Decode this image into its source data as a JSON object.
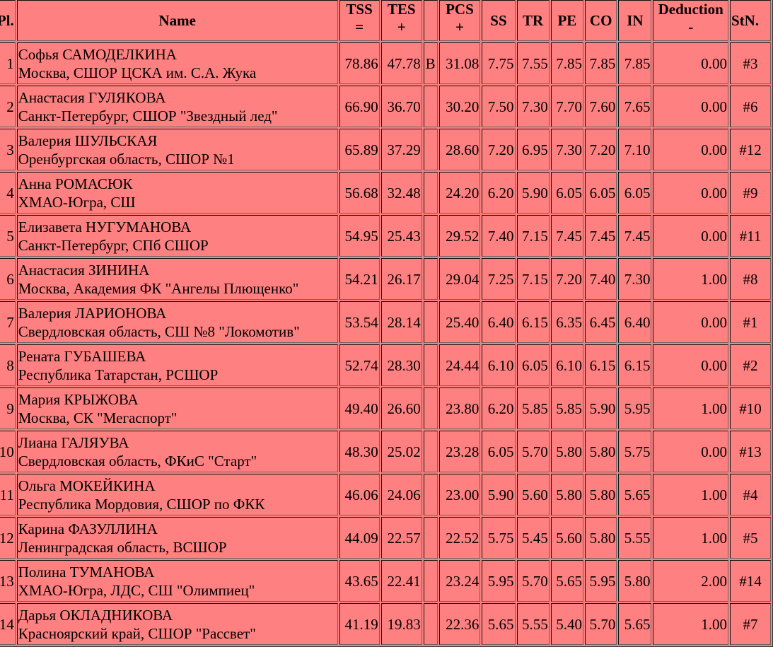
{
  "headers": {
    "pl": "Pl.",
    "name": "Name",
    "tss": [
      "TSS",
      "="
    ],
    "tes": [
      "TES",
      "+"
    ],
    "b": "",
    "pcs": [
      "PCS",
      "+"
    ],
    "ss": "SS",
    "tr": "TR",
    "pe": "PE",
    "co": "CO",
    "in": "IN",
    "ded": [
      "Deduction",
      "-"
    ],
    "stn": "StN."
  },
  "background_color": "#ff8080",
  "rows": [
    {
      "pl": "1",
      "name": "Софья САМОДЕЛКИНА",
      "club": "Москва, СШОР ЦСКА им. С.А. Жука",
      "tss": "78.86",
      "tes": "47.78",
      "b": "B",
      "pcs": "31.08",
      "ss": "7.75",
      "tr": "7.55",
      "pe": "7.85",
      "co": "7.85",
      "in": "7.85",
      "ded": "0.00",
      "stn": "#3"
    },
    {
      "pl": "2",
      "name": "Анастасия ГУЛЯКОВА",
      "club": "Санкт-Петербург, СШОР \"Звездный лед\"",
      "tss": "66.90",
      "tes": "36.70",
      "b": "",
      "pcs": "30.20",
      "ss": "7.50",
      "tr": "7.30",
      "pe": "7.70",
      "co": "7.60",
      "in": "7.65",
      "ded": "0.00",
      "stn": "#6"
    },
    {
      "pl": "3",
      "name": "Валерия ШУЛЬСКАЯ",
      "club": "Оренбургская область, СШОР №1",
      "tss": "65.89",
      "tes": "37.29",
      "b": "",
      "pcs": "28.60",
      "ss": "7.20",
      "tr": "6.95",
      "pe": "7.30",
      "co": "7.20",
      "in": "7.10",
      "ded": "0.00",
      "stn": "#12"
    },
    {
      "pl": "4",
      "name": "Анна РОМАСЮК",
      "club": "ХМАО-Югра, СШ",
      "tss": "56.68",
      "tes": "32.48",
      "b": "",
      "pcs": "24.20",
      "ss": "6.20",
      "tr": "5.90",
      "pe": "6.05",
      "co": "6.05",
      "in": "6.05",
      "ded": "0.00",
      "stn": "#9"
    },
    {
      "pl": "5",
      "name": "Елизавета НУГУМАНОВА",
      "club": "Санкт-Петербург, СПб СШОР",
      "tss": "54.95",
      "tes": "25.43",
      "b": "",
      "pcs": "29.52",
      "ss": "7.40",
      "tr": "7.15",
      "pe": "7.45",
      "co": "7.45",
      "in": "7.45",
      "ded": "0.00",
      "stn": "#11"
    },
    {
      "pl": "6",
      "name": "Анастасия ЗИНИНА",
      "club": "Москва, Академия ФК \"Ангелы Плющенко\"",
      "tss": "54.21",
      "tes": "26.17",
      "b": "",
      "pcs": "29.04",
      "ss": "7.25",
      "tr": "7.15",
      "pe": "7.20",
      "co": "7.40",
      "in": "7.30",
      "ded": "1.00",
      "stn": "#8"
    },
    {
      "pl": "7",
      "name": "Валерия ЛАРИОНОВА",
      "club": "Свердловская область, СШ №8 \"Локомотив\"",
      "tss": "53.54",
      "tes": "28.14",
      "b": "",
      "pcs": "25.40",
      "ss": "6.40",
      "tr": "6.15",
      "pe": "6.35",
      "co": "6.45",
      "in": "6.40",
      "ded": "0.00",
      "stn": "#1"
    },
    {
      "pl": "8",
      "name": "Рената ГУБАШЕВА",
      "club": "Республика Татарстан, РСШОР",
      "tss": "52.74",
      "tes": "28.30",
      "b": "",
      "pcs": "24.44",
      "ss": "6.10",
      "tr": "6.05",
      "pe": "6.10",
      "co": "6.15",
      "in": "6.15",
      "ded": "0.00",
      "stn": "#2"
    },
    {
      "pl": "9",
      "name": "Мария КРЫЖОВА",
      "club": "Москва, СК \"Мегаспорт\"",
      "tss": "49.40",
      "tes": "26.60",
      "b": "",
      "pcs": "23.80",
      "ss": "6.20",
      "tr": "5.85",
      "pe": "5.85",
      "co": "5.90",
      "in": "5.95",
      "ded": "1.00",
      "stn": "#10"
    },
    {
      "pl": "10",
      "name": "Лиана ГАЛЯУВА",
      "club": "Свердловская область, ФКиС \"Старт\"",
      "tss": "48.30",
      "tes": "25.02",
      "b": "",
      "pcs": "23.28",
      "ss": "6.05",
      "tr": "5.70",
      "pe": "5.80",
      "co": "5.80",
      "in": "5.75",
      "ded": "0.00",
      "stn": "#13"
    },
    {
      "pl": "11",
      "name": "Ольга МОКЕЙКИНА",
      "club": "Республика Мордовия, СШОР по ФКК",
      "tss": "46.06",
      "tes": "24.06",
      "b": "",
      "pcs": "23.00",
      "ss": "5.90",
      "tr": "5.60",
      "pe": "5.80",
      "co": "5.80",
      "in": "5.65",
      "ded": "1.00",
      "stn": "#4"
    },
    {
      "pl": "12",
      "name": "Карина ФАЗУЛЛИНА",
      "club": "Ленинградская область, ВСШОР",
      "tss": "44.09",
      "tes": "22.57",
      "b": "",
      "pcs": "22.52",
      "ss": "5.75",
      "tr": "5.45",
      "pe": "5.60",
      "co": "5.80",
      "in": "5.55",
      "ded": "1.00",
      "stn": "#5"
    },
    {
      "pl": "13",
      "name": "Полина ТУМАНОВА",
      "club": "ХМАО-Югра, ЛДС, СШ \"Олимпиец\"",
      "tss": "43.65",
      "tes": "22.41",
      "b": "",
      "pcs": "23.24",
      "ss": "5.95",
      "tr": "5.70",
      "pe": "5.65",
      "co": "5.95",
      "in": "5.80",
      "ded": "2.00",
      "stn": "#14"
    },
    {
      "pl": "14",
      "name": "Дарья ОКЛАДНИКОВА",
      "club": "Красноярский край, СШОР \"Рассвет\"",
      "tss": "41.19",
      "tes": "19.83",
      "b": "",
      "pcs": "22.36",
      "ss": "5.65",
      "tr": "5.55",
      "pe": "5.40",
      "co": "5.70",
      "in": "5.65",
      "ded": "1.00",
      "stn": "#7"
    }
  ]
}
